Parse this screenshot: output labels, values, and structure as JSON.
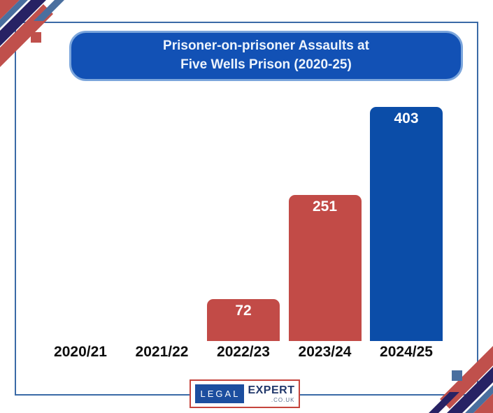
{
  "banner": {
    "line1": "Prisoner-on-prisoner Assaults at",
    "line2": "Five Wells Prison (2020-25)"
  },
  "chart_data": {
    "type": "bar",
    "title": "Prisoner-on-prisoner Assaults at Five Wells Prison (2020-25)",
    "categories": [
      "2020/21",
      "2021/22",
      "2022/23",
      "2023/24",
      "2024/25"
    ],
    "values": [
      0,
      0,
      72,
      251,
      403
    ],
    "data_labels": [
      "",
      "",
      "72",
      "251",
      "403"
    ],
    "bar_colors": [
      "#c24b47",
      "#c24b47",
      "#c24b47",
      "#c24b47",
      "#0b4da8"
    ],
    "xlabel": "",
    "ylabel": "",
    "ylim": [
      0,
      420
    ],
    "grid": false,
    "legend": false,
    "value_label_position": "inside-top",
    "value_label_color": "#ffffff"
  },
  "logo": {
    "legal": "LEGAL",
    "expert": "EXPERT",
    "domain": ".CO.UK"
  },
  "colors": {
    "banner_bg": "#1251b5",
    "banner_border": "#7ca6dc",
    "bar_red": "#c24b47",
    "bar_blue": "#0b4da8",
    "frame_line": "#3a6aa6",
    "stripe_red": "#c0504c",
    "stripe_steel_blue": "#4a6f9f",
    "stripe_navy": "#272264",
    "logo_border": "#c5443c",
    "logo_blue_box": "#1c4e9f",
    "logo_navy_text": "#21386b"
  }
}
